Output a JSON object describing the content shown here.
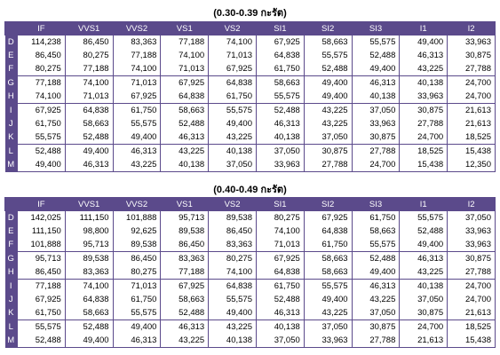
{
  "headers": [
    "IF",
    "VVS1",
    "VVS2",
    "VS1",
    "VS2",
    "SI1",
    "SI2",
    "SI3",
    "I1",
    "I2"
  ],
  "group_starts": [
    "D",
    "G",
    "I",
    "L"
  ],
  "tables": [
    {
      "title": "(0.30-0.39 กะรัต)",
      "rows": [
        {
          "color": "D",
          "values": [
            "114,238",
            "86,450",
            "83,363",
            "77,188",
            "74,100",
            "67,925",
            "58,663",
            "55,575",
            "49,400",
            "33,963"
          ]
        },
        {
          "color": "E",
          "values": [
            "86,450",
            "80,275",
            "77,188",
            "74,100",
            "71,013",
            "64,838",
            "55,575",
            "52,488",
            "46,313",
            "30,875"
          ]
        },
        {
          "color": "F",
          "values": [
            "80,275",
            "77,188",
            "74,100",
            "71,013",
            "67,925",
            "61,750",
            "52,488",
            "49,400",
            "43,225",
            "27,788"
          ]
        },
        {
          "color": "G",
          "values": [
            "77,188",
            "74,100",
            "71,013",
            "67,925",
            "64,838",
            "58,663",
            "49,400",
            "46,313",
            "40,138",
            "24,700"
          ]
        },
        {
          "color": "H",
          "values": [
            "74,100",
            "71,013",
            "67,925",
            "64,838",
            "61,750",
            "55,575",
            "49,400",
            "40,138",
            "33,963",
            "24,700"
          ]
        },
        {
          "color": "I",
          "values": [
            "67,925",
            "64,838",
            "61,750",
            "58,663",
            "55,575",
            "52,488",
            "43,225",
            "37,050",
            "30,875",
            "21,613"
          ]
        },
        {
          "color": "J",
          "values": [
            "61,750",
            "58,663",
            "55,575",
            "52,488",
            "49,400",
            "46,313",
            "43,225",
            "33,963",
            "27,788",
            "21,613"
          ]
        },
        {
          "color": "K",
          "values": [
            "55,575",
            "52,488",
            "49,400",
            "46,313",
            "43,225",
            "40,138",
            "37,050",
            "30,875",
            "24,700",
            "18,525"
          ]
        },
        {
          "color": "L",
          "values": [
            "52,488",
            "49,400",
            "46,313",
            "43,225",
            "40,138",
            "37,050",
            "30,875",
            "27,788",
            "18,525",
            "15,438"
          ]
        },
        {
          "color": "M",
          "values": [
            "49,400",
            "46,313",
            "43,225",
            "40,138",
            "37,050",
            "33,963",
            "27,788",
            "24,700",
            "15,438",
            "12,350"
          ]
        }
      ]
    },
    {
      "title": "(0.40-0.49 กะรัต)",
      "rows": [
        {
          "color": "D",
          "values": [
            "142,025",
            "111,150",
            "101,888",
            "95,713",
            "89,538",
            "80,275",
            "67,925",
            "61,750",
            "55,575",
            "37,050"
          ]
        },
        {
          "color": "E",
          "values": [
            "111,150",
            "98,800",
            "92,625",
            "89,538",
            "86,450",
            "74,100",
            "64,838",
            "58,663",
            "52,488",
            "33,963"
          ]
        },
        {
          "color": "F",
          "values": [
            "101,888",
            "95,713",
            "89,538",
            "86,450",
            "83,363",
            "71,013",
            "61,750",
            "55,575",
            "49,400",
            "33,963"
          ]
        },
        {
          "color": "G",
          "values": [
            "95,713",
            "89,538",
            "86,450",
            "83,363",
            "80,275",
            "67,925",
            "58,663",
            "52,488",
            "46,313",
            "30,875"
          ]
        },
        {
          "color": "H",
          "values": [
            "86,450",
            "83,363",
            "80,275",
            "77,188",
            "74,100",
            "64,838",
            "58,663",
            "49,400",
            "43,225",
            "27,788"
          ]
        },
        {
          "color": "I",
          "values": [
            "77,188",
            "74,100",
            "71,013",
            "67,925",
            "64,838",
            "61,750",
            "55,575",
            "46,313",
            "40,138",
            "24,700"
          ]
        },
        {
          "color": "J",
          "values": [
            "67,925",
            "64,838",
            "61,750",
            "58,663",
            "55,575",
            "52,488",
            "49,400",
            "43,225",
            "37,050",
            "24,700"
          ]
        },
        {
          "color": "K",
          "values": [
            "61,750",
            "58,663",
            "55,575",
            "52,488",
            "49,400",
            "46,313",
            "43,225",
            "37,050",
            "30,875",
            "21,613"
          ]
        },
        {
          "color": "L",
          "values": [
            "55,575",
            "52,488",
            "49,400",
            "46,313",
            "43,225",
            "40,138",
            "37,050",
            "30,875",
            "24,700",
            "18,525"
          ]
        },
        {
          "color": "M",
          "values": [
            "52,488",
            "49,400",
            "46,313",
            "43,225",
            "40,138",
            "37,050",
            "33,963",
            "27,788",
            "21,613",
            "15,438"
          ]
        }
      ]
    }
  ]
}
